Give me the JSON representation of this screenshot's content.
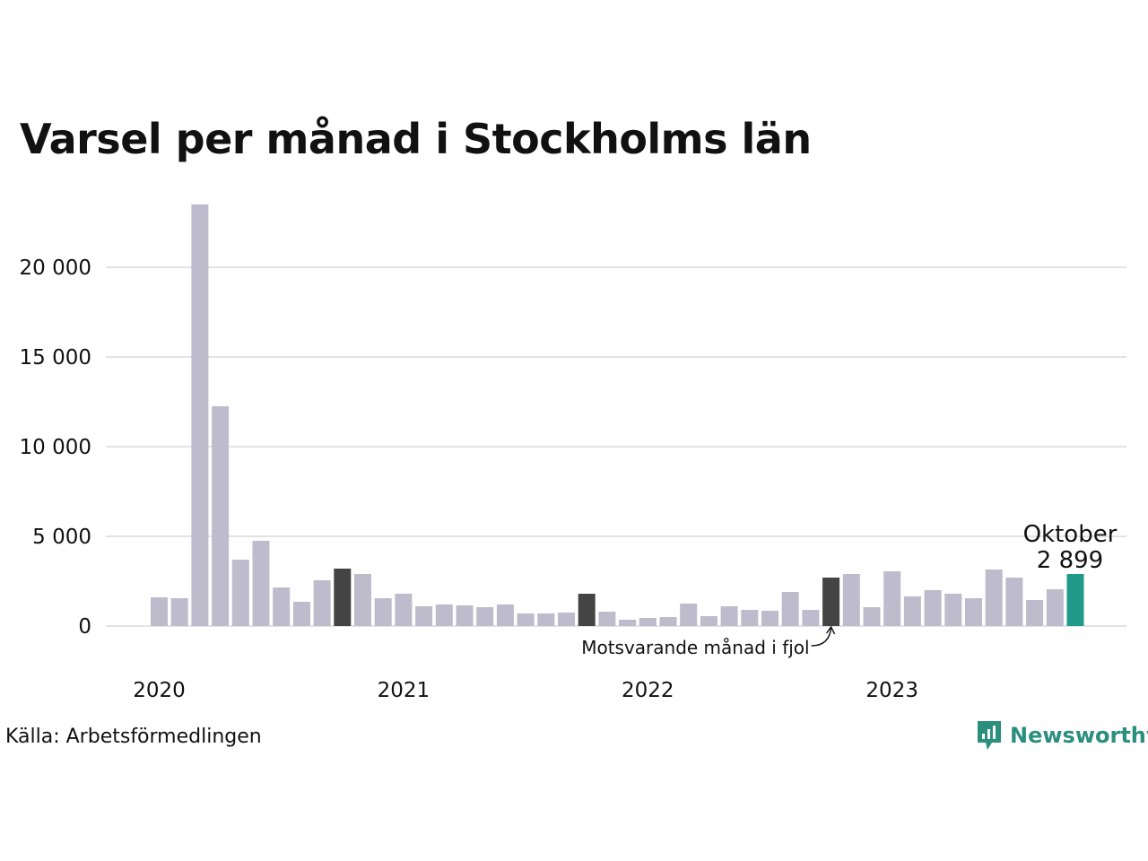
{
  "chart_data": {
    "type": "bar",
    "title": "Varsel per månad i Stockholms län",
    "xlabel": "",
    "ylabel": "",
    "ylim": [
      0,
      23500
    ],
    "yticks": [
      0,
      5000,
      10000,
      15000,
      20000
    ],
    "ytick_labels": [
      "0",
      "5 000",
      "10 000",
      "15 000",
      "20 000"
    ],
    "year_labels": [
      {
        "label": "2020",
        "index": 0
      },
      {
        "label": "2021",
        "index": 12
      },
      {
        "label": "2022",
        "index": 24
      },
      {
        "label": "2023",
        "index": 36
      }
    ],
    "categories": [
      "2020-01",
      "2020-02",
      "2020-03",
      "2020-04",
      "2020-05",
      "2020-06",
      "2020-07",
      "2020-08",
      "2020-09",
      "2020-10",
      "2020-11",
      "2020-12",
      "2021-01",
      "2021-02",
      "2021-03",
      "2021-04",
      "2021-05",
      "2021-06",
      "2021-07",
      "2021-08",
      "2021-09",
      "2021-10",
      "2021-11",
      "2021-12",
      "2022-01",
      "2022-02",
      "2022-03",
      "2022-04",
      "2022-05",
      "2022-06",
      "2022-07",
      "2022-08",
      "2022-09",
      "2022-10",
      "2022-11",
      "2022-12",
      "2023-01",
      "2023-02",
      "2023-03",
      "2023-04",
      "2023-05",
      "2023-06",
      "2023-07",
      "2023-08",
      "2023-09",
      "2023-10"
    ],
    "values": [
      1600,
      1550,
      23500,
      12250,
      3700,
      4750,
      2150,
      1350,
      2550,
      3200,
      2900,
      1550,
      1800,
      1100,
      1200,
      1150,
      1050,
      1200,
      700,
      700,
      750,
      1800,
      800,
      350,
      450,
      500,
      1250,
      550,
      1100,
      900,
      850,
      1900,
      900,
      2700,
      2900,
      1050,
      3050,
      1650,
      2000,
      1800,
      1550,
      3150,
      2700,
      1450,
      2050,
      2899
    ],
    "highlight_dark": [
      9,
      21,
      33
    ],
    "highlight_current": 45,
    "colors": {
      "default": "#bdbbcc",
      "dark": "#444444",
      "current": "#1f9a8a",
      "grid": "#e3e3e6"
    },
    "annotation": {
      "text": "Motsvarande månad i fjol",
      "index": 33
    },
    "callout": {
      "month": "Oktober",
      "value_label": "2 899",
      "index": 45
    }
  },
  "footer": {
    "source": "Källa: Arbetsförmedlingen",
    "brand": "Newsworthy",
    "brand_icon": "newsworthy-logo-icon"
  }
}
